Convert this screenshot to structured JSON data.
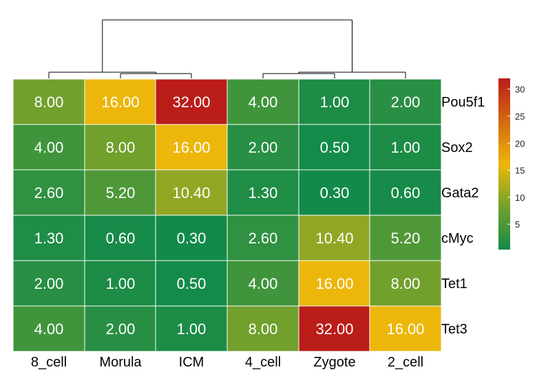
{
  "chart_data": {
    "type": "heatmap",
    "columns": [
      "8_cell",
      "Morula",
      "ICM",
      "4_cell",
      "Zygote",
      "2_cell"
    ],
    "rows": [
      "Pou5f1",
      "Sox2",
      "Gata2",
      "cMyc",
      "Tet1",
      "Tet3"
    ],
    "values": [
      [
        8.0,
        16.0,
        32.0,
        4.0,
        1.0,
        2.0
      ],
      [
        4.0,
        8.0,
        16.0,
        2.0,
        0.5,
        1.0
      ],
      [
        2.6,
        5.2,
        10.4,
        1.3,
        0.3,
        0.6
      ],
      [
        1.3,
        0.6,
        0.3,
        2.6,
        10.4,
        5.2
      ],
      [
        2.0,
        1.0,
        0.5,
        4.0,
        16.0,
        8.0
      ],
      [
        4.0,
        2.0,
        1.0,
        8.0,
        32.0,
        16.0
      ]
    ],
    "value_labels": [
      [
        "8.00",
        "16.00",
        "32.00",
        "4.00",
        "1.00",
        "2.00"
      ],
      [
        "4.00",
        "8.00",
        "16.00",
        "2.00",
        "0.50",
        "1.00"
      ],
      [
        "2.60",
        "5.20",
        "10.40",
        "1.30",
        "0.30",
        "0.60"
      ],
      [
        "1.30",
        "0.60",
        "0.30",
        "2.60",
        "10.40",
        "5.20"
      ],
      [
        "2.00",
        "1.00",
        "0.50",
        "4.00",
        "16.00",
        "8.00"
      ],
      [
        "4.00",
        "2.00",
        "1.00",
        "8.00",
        "32.00",
        "16.00"
      ]
    ],
    "column_groups": [
      [
        "8_cell",
        "Morula",
        "ICM"
      ],
      [
        "4_cell",
        "Zygote",
        "2_cell"
      ]
    ],
    "color_scale": {
      "min": 0.3,
      "max": 32,
      "stops": [
        {
          "v": 0.3,
          "color": "#138a4a"
        },
        {
          "v": 10,
          "color": "#8aa626"
        },
        {
          "v": 16,
          "color": "#ecb70a"
        },
        {
          "v": 32,
          "color": "#bb1d19"
        }
      ]
    },
    "colorbar_ticks": [
      5,
      10,
      15,
      20,
      25,
      30
    ],
    "legend_position": "right"
  }
}
